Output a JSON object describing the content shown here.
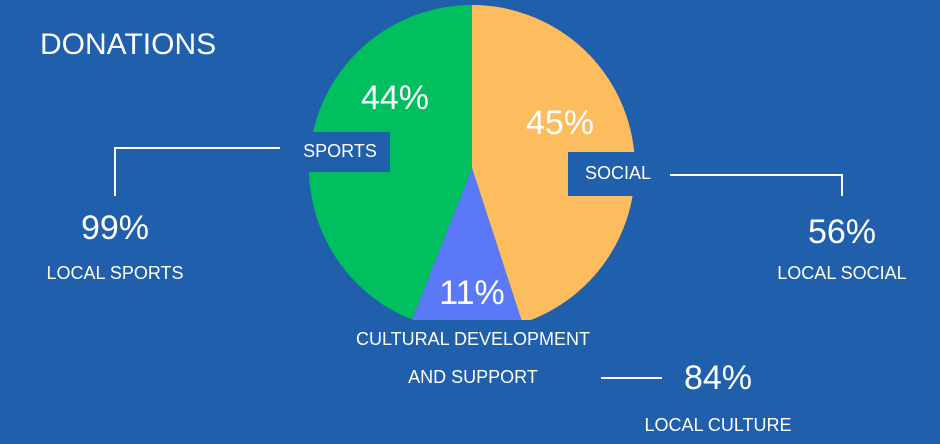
{
  "chart_data": {
    "type": "pie",
    "title": "DONATIONS",
    "categories": [
      "SOCIAL",
      "CULTURAL DEVELOPMENT\nAND SUPPORT",
      "SPORTS"
    ],
    "values": [
      45,
      11,
      44
    ],
    "value_labels": [
      "45%",
      "11%",
      "44%"
    ],
    "colors": [
      "#fdbd5e",
      "#5b79f7",
      "#00bf5f"
    ],
    "callouts": [
      {
        "value": 56,
        "label": "56%",
        "text": "LOCAL SOCIAL"
      },
      {
        "value": 84,
        "label": "84%",
        "text": "LOCAL CULTURE"
      },
      {
        "value": 99,
        "label": "99%",
        "text": "LOCAL SPORTS"
      }
    ]
  }
}
